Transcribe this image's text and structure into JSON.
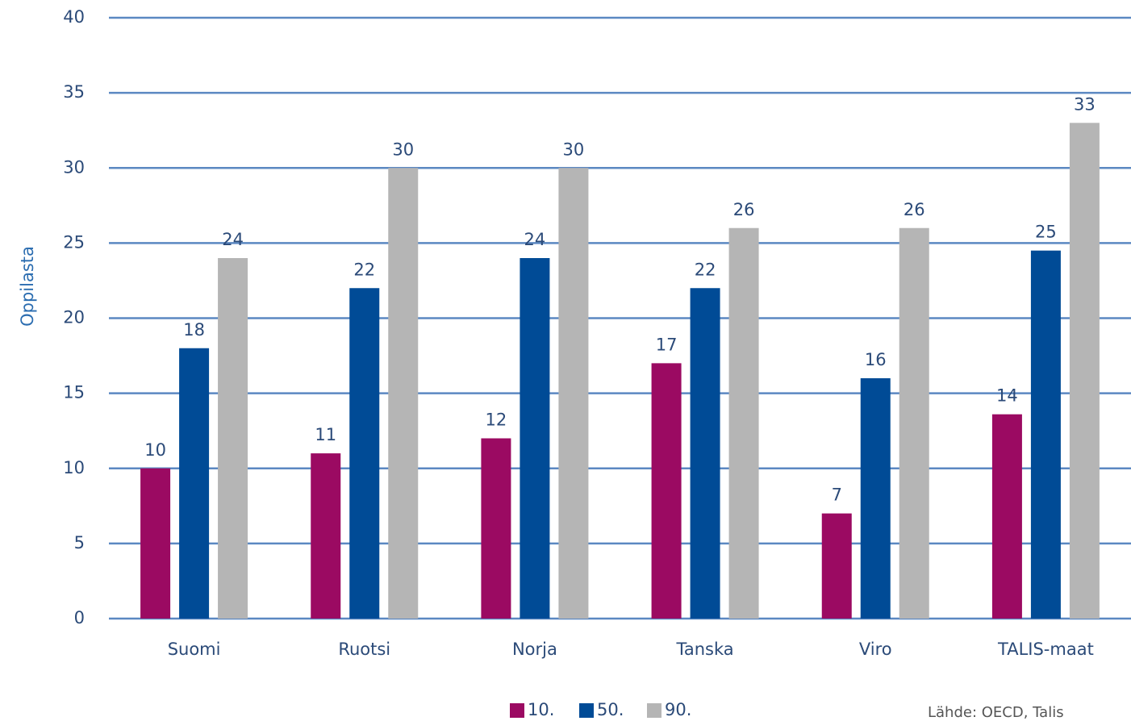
{
  "chart_data": {
    "type": "bar",
    "y_axis_label": "Oppilasta",
    "source": "Lähde: OECD, Talis",
    "categories": [
      "Suomi",
      "Ruotsi",
      "Norja",
      "Tanska",
      "Viro",
      "TALIS-maat"
    ],
    "series": [
      {
        "name": "10.",
        "color": "#9b0a62",
        "values": [
          10,
          11,
          12,
          17,
          7,
          13.6
        ],
        "value_labels": [
          "10",
          "11",
          "12",
          "17",
          "7",
          "14"
        ]
      },
      {
        "name": "50.",
        "color": "#004b96",
        "values": [
          18,
          22,
          24,
          22,
          16,
          24.5
        ],
        "value_labels": [
          "18",
          "22",
          "24",
          "22",
          "16",
          "25"
        ]
      },
      {
        "name": "90.",
        "color": "#b5b5b5",
        "values": [
          24,
          30,
          30,
          26,
          26,
          33
        ]
      }
    ],
    "ylim": [
      0,
      40
    ],
    "yticks": [
      0,
      5,
      10,
      15,
      20,
      25,
      30,
      35,
      40
    ],
    "grid": true
  }
}
